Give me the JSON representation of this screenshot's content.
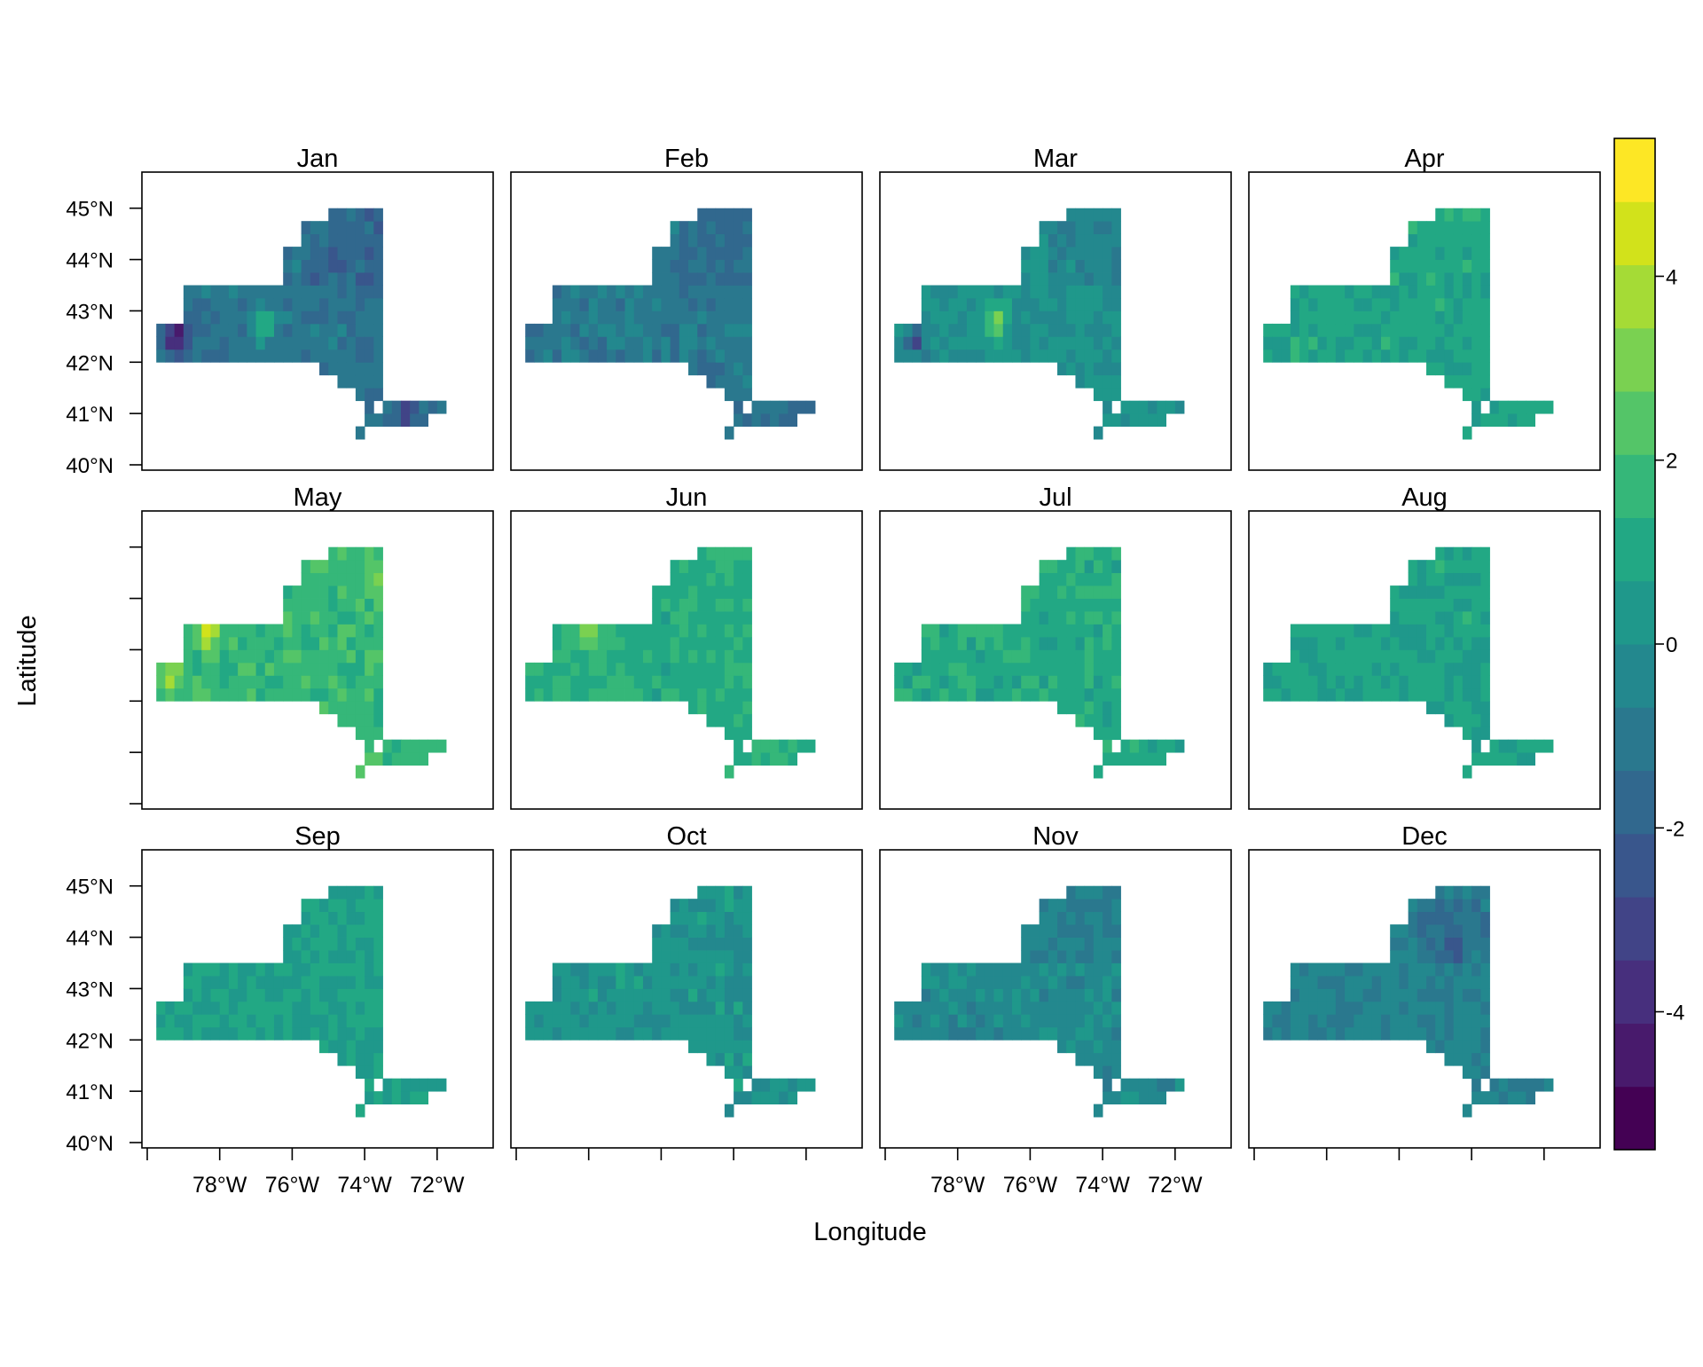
{
  "chart_data": {
    "type": "heatmap",
    "title": "",
    "xlabel": "Longitude",
    "ylabel": "Latitude",
    "panels": [
      "Jan",
      "Feb",
      "Mar",
      "Apr",
      "May",
      "Jun",
      "Jul",
      "Aug",
      "Sep",
      "Oct",
      "Nov",
      "Dec"
    ],
    "layout": {
      "rows": 3,
      "cols": 4
    },
    "xlim": [
      -80,
      -70.6
    ],
    "ylim": [
      40,
      45.6
    ],
    "x_ticks": [
      {
        "value": -80,
        "label": ""
      },
      {
        "value": -78,
        "label": "78°W"
      },
      {
        "value": -76,
        "label": "76°W"
      },
      {
        "value": -74,
        "label": "74°W"
      },
      {
        "value": -72,
        "label": "72°W"
      }
    ],
    "y_ticks": [
      {
        "value": 40,
        "label": "40°N"
      },
      {
        "value": 41,
        "label": "41°N"
      },
      {
        "value": 42,
        "label": "42°N"
      },
      {
        "value": 43,
        "label": "43°N"
      },
      {
        "value": 44,
        "label": "44°N"
      },
      {
        "value": 45,
        "label": "45°N"
      }
    ],
    "colorbar": {
      "min": -5.5,
      "max": 5.5,
      "ticks": [
        -4,
        -2,
        0,
        2,
        4
      ],
      "colors": [
        "#440154",
        "#481a6c",
        "#472f7d",
        "#414487",
        "#39568c",
        "#31688e",
        "#2a788e",
        "#23888e",
        "#1f988b",
        "#22a884",
        "#35b779",
        "#54c568",
        "#7ad151",
        "#a5db36",
        "#d2e21b",
        "#fde725"
      ]
    },
    "grid": false,
    "legend": "right",
    "panel_means": {
      "Jan": -1.2,
      "Feb": -1.0,
      "Mar": 0.1,
      "Apr": 0.9,
      "May": 1.7,
      "Jun": 1.2,
      "Jul": 1.1,
      "Aug": 0.8,
      "Sep": 0.7,
      "Oct": 0.2,
      "Nov": -0.3,
      "Dec": -0.6
    },
    "hotspots": {
      "Jan": [
        {
          "lon": -79.2,
          "lat": 42.5,
          "value": -5.0
        },
        {
          "lon": -76.8,
          "lat": 42.7,
          "value": 2.0
        },
        {
          "lon": -72.8,
          "lat": 41.0,
          "value": -3.0
        }
      ],
      "Mar": [
        {
          "lon": -79.2,
          "lat": 42.4,
          "value": -3.0
        },
        {
          "lon": -76.9,
          "lat": 42.8,
          "value": 3.2
        }
      ],
      "May": [
        {
          "lon": -78.3,
          "lat": 43.3,
          "value": 4.5
        },
        {
          "lon": -79.3,
          "lat": 42.5,
          "value": 4.0
        },
        {
          "lon": -73.5,
          "lat": 44.5,
          "value": 3.0
        }
      ],
      "Jun": [
        {
          "lon": -78.0,
          "lat": 43.3,
          "value": 3.5
        }
      ],
      "Dec": [
        {
          "lon": -74.5,
          "lat": 43.8,
          "value": -2.2
        }
      ]
    }
  }
}
